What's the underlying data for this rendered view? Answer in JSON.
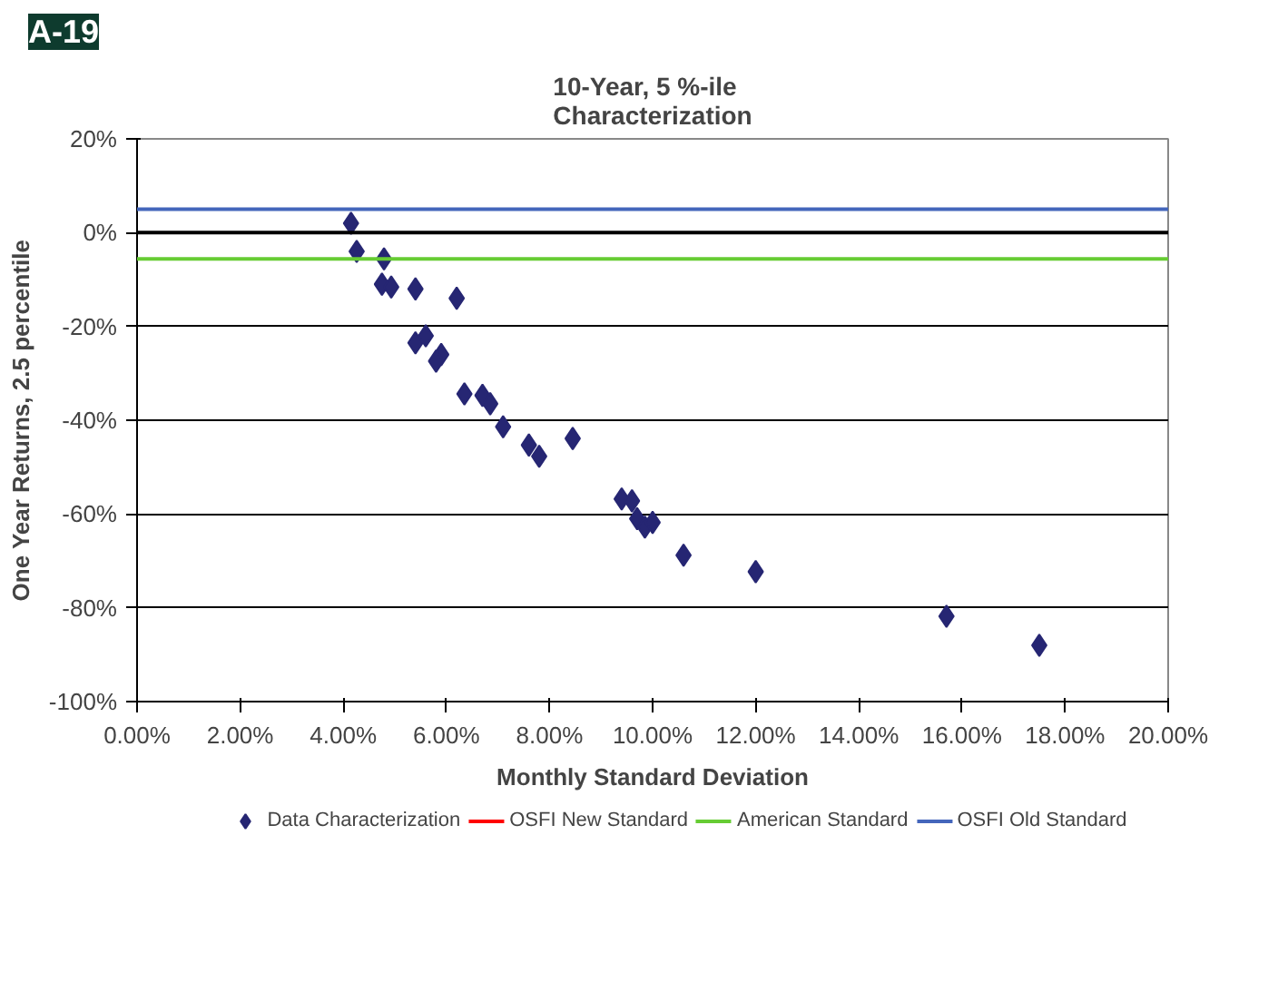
{
  "chart_data": {
    "type": "scatter",
    "title": "10-Year, 5 %-ile\nCharacterization",
    "xlabel": "Monthly Standard Deviation",
    "ylabel": "One Year Returns, 2.5 percentile",
    "annotations": [
      "A-19"
    ],
    "series": [
      {
        "name": "Data Characterization",
        "color": "#262673",
        "x": [
          4.15,
          4.26,
          4.79,
          4.75,
          4.93,
          5.4,
          6.2,
          5.4,
          5.6,
          5.9,
          5.8,
          6.35,
          6.7,
          6.85,
          7.1,
          7.6,
          7.8,
          8.45,
          9.4,
          9.6,
          9.7,
          9.85,
          10.0,
          10.6,
          12.0,
          15.7,
          17.5
        ],
        "values": [
          2,
          -4,
          -5.6,
          -11,
          -11.6,
          -12,
          -14,
          -23.5,
          -22,
          -26,
          -27.4,
          -34.4,
          -34.7,
          -36.5,
          -41.4,
          -45.3,
          -47.7,
          -43.9,
          -56.8,
          -57.2,
          -61,
          -62.8,
          -61.8,
          -68.8,
          -72.3,
          -81.8,
          -88
        ]
      }
    ],
    "marker": "diamond",
    "ref_lines": [
      {
        "axis": "y",
        "value": 0,
        "color": "#000000"
      },
      {
        "axis": "y",
        "value": null,
        "label": "OSFI New Standard",
        "color": "#ff0000"
      },
      {
        "axis": "y",
        "value": -5.6,
        "label": "American Standard",
        "color": "#66cc33"
      },
      {
        "axis": "y",
        "value": 5,
        "label": "OSFI Old Standard",
        "color": "#4466bb"
      }
    ],
    "xlim": [
      0,
      20
    ],
    "xticks": [
      {
        "value": 0,
        "label": "0.00%"
      },
      {
        "value": 2,
        "label": "2.00%"
      },
      {
        "value": 4,
        "label": "4.00%"
      },
      {
        "value": 6,
        "label": "6.00%"
      },
      {
        "value": 8,
        "label": "8.00%"
      },
      {
        "value": 10,
        "label": "10.00%"
      },
      {
        "value": 12,
        "label": "12.00%"
      },
      {
        "value": 14,
        "label": "14.00%"
      },
      {
        "value": 16,
        "label": "16.00%"
      },
      {
        "value": 18,
        "label": "18.00%"
      },
      {
        "value": 20,
        "label": "20.00%"
      }
    ],
    "ylim": [
      -100,
      20
    ],
    "yticks": [
      {
        "value": -100,
        "label": "-100%"
      },
      {
        "value": -80,
        "label": "-80%"
      },
      {
        "value": -60,
        "label": "-60%"
      },
      {
        "value": -40,
        "label": "-40%"
      },
      {
        "value": -20,
        "label": "-20%"
      },
      {
        "value": 0,
        "label": "0%"
      },
      {
        "value": 20,
        "label": "20%"
      }
    ],
    "grid": "y",
    "legend": "bottom"
  }
}
